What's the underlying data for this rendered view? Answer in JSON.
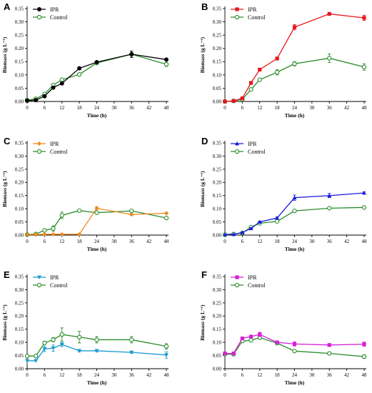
{
  "figure": {
    "x_ticks": [
      0,
      6,
      12,
      18,
      24,
      30,
      36,
      42,
      48
    ],
    "y_ticks": [
      "0.00",
      "0.05",
      "0.10",
      "0.15",
      "0.20",
      "0.25",
      "0.30",
      "0.35"
    ]
  },
  "chart_data": [
    {
      "type": "line",
      "panel": "A",
      "xlabel": "Time (h)",
      "ylabel": "Biomass (g L⁻¹)",
      "xlim": [
        0,
        48
      ],
      "ylim": [
        0,
        0.35
      ],
      "legend_position": "top-left",
      "series": [
        {
          "name": "IPR",
          "color": "#000000",
          "marker": "circle-filled",
          "x": [
            0,
            3,
            6,
            9,
            12,
            18,
            24,
            36,
            48
          ],
          "y": [
            0.003,
            0.005,
            0.02,
            0.052,
            0.068,
            0.125,
            0.148,
            0.178,
            0.158
          ],
          "err": [
            0,
            0,
            0,
            0,
            0.004,
            0.004,
            0.004,
            0.012,
            0.004
          ]
        },
        {
          "name": "Control",
          "color": "#2a8c2a",
          "marker": "circle-open",
          "x": [
            0,
            3,
            6,
            9,
            12,
            18,
            24,
            36,
            48
          ],
          "y": [
            0.005,
            0.01,
            0.028,
            0.062,
            0.082,
            0.102,
            0.145,
            0.178,
            0.14
          ],
          "err": [
            0,
            0,
            0,
            0.004,
            0.004,
            0.005,
            0.005,
            0.012,
            0.008
          ]
        }
      ]
    },
    {
      "type": "line",
      "panel": "B",
      "xlabel": "Time (h)",
      "ylabel": "Biomass (g L⁻¹)",
      "xlim": [
        0,
        48
      ],
      "ylim": [
        0,
        0.35
      ],
      "legend_position": "top-left",
      "series": [
        {
          "name": "IPR",
          "color": "#e8161c",
          "marker": "square",
          "x": [
            0,
            3,
            6,
            9,
            12,
            18,
            24,
            36,
            48
          ],
          "y": [
            0.0,
            0.002,
            0.012,
            0.07,
            0.12,
            0.162,
            0.28,
            0.33,
            0.315
          ],
          "err": [
            0,
            0,
            0,
            0.005,
            0.004,
            0.005,
            0.01,
            0.004,
            0.01
          ]
        },
        {
          "name": "Control",
          "color": "#2a8c2a",
          "marker": "circle-open",
          "x": [
            0,
            3,
            6,
            9,
            12,
            18,
            24,
            36,
            48
          ],
          "y": [
            0.0,
            0.002,
            0.008,
            0.045,
            0.082,
            0.11,
            0.142,
            0.163,
            0.13
          ],
          "err": [
            0,
            0,
            0,
            0.004,
            0.005,
            0.01,
            0.008,
            0.016,
            0.012
          ]
        }
      ]
    },
    {
      "type": "line",
      "panel": "C",
      "xlabel": "Time (h)",
      "ylabel": "Biomass (g L⁻¹)",
      "xlim": [
        0,
        48
      ],
      "ylim": [
        0,
        0.35
      ],
      "legend_position": "top-left",
      "series": [
        {
          "name": "IPR",
          "color": "#f0881a",
          "marker": "diamond",
          "x": [
            0,
            3,
            6,
            9,
            12,
            18,
            24,
            36,
            48
          ],
          "y": [
            0.002,
            0.002,
            0.003,
            0.003,
            0.003,
            0.003,
            0.102,
            0.078,
            0.083
          ],
          "err": [
            0,
            0,
            0,
            0,
            0,
            0,
            0.006,
            0.004,
            0.003
          ]
        },
        {
          "name": "Control",
          "color": "#2a8c2a",
          "marker": "circle-open",
          "x": [
            0,
            3,
            6,
            9,
            12,
            18,
            24,
            36,
            48
          ],
          "y": [
            0.002,
            0.004,
            0.018,
            0.025,
            0.075,
            0.093,
            0.085,
            0.092,
            0.065
          ],
          "err": [
            0,
            0,
            0,
            0.01,
            0.012,
            0.004,
            0.004,
            0.003,
            0.004
          ]
        }
      ]
    },
    {
      "type": "line",
      "panel": "D",
      "xlabel": "Time (h)",
      "ylabel": "Biomass (g L⁻¹)",
      "xlim": [
        0,
        48
      ],
      "ylim": [
        0,
        0.35
      ],
      "legend_position": "top-left",
      "series": [
        {
          "name": "IPR",
          "color": "#1a1adc",
          "marker": "triangle-up",
          "x": [
            0,
            3,
            6,
            9,
            12,
            18,
            24,
            36,
            48
          ],
          "y": [
            0.002,
            0.003,
            0.01,
            0.025,
            0.05,
            0.065,
            0.142,
            0.15,
            0.16
          ],
          "err": [
            0,
            0,
            0,
            0.003,
            0.003,
            0.004,
            0.01,
            0.008,
            0.004
          ]
        },
        {
          "name": "Control",
          "color": "#2a8c2a",
          "marker": "circle-open",
          "x": [
            0,
            3,
            6,
            9,
            12,
            18,
            24,
            36,
            48
          ],
          "y": [
            0.002,
            0.004,
            0.008,
            0.03,
            0.045,
            0.052,
            0.092,
            0.102,
            0.105
          ],
          "err": [
            0,
            0,
            0,
            0.003,
            0.003,
            0.003,
            0.003,
            0.003,
            0.003
          ]
        }
      ]
    },
    {
      "type": "line",
      "panel": "E",
      "xlabel": "Time (h)",
      "ylabel": "Biomass (g L⁻¹)",
      "xlim": [
        0,
        48
      ],
      "ylim": [
        0,
        0.35
      ],
      "legend_position": "top-left",
      "series": [
        {
          "name": "IPR",
          "color": "#1a9ad0",
          "marker": "triangle-down",
          "x": [
            0,
            3,
            6,
            9,
            12,
            18,
            24,
            36,
            48
          ],
          "y": [
            0.03,
            0.03,
            0.075,
            0.078,
            0.092,
            0.068,
            0.068,
            0.062,
            0.052
          ],
          "err": [
            0,
            0,
            0.01,
            0.012,
            0.008,
            0.004,
            0.004,
            0.004,
            0.012
          ]
        },
        {
          "name": "Control",
          "color": "#2a8c2a",
          "marker": "circle-open",
          "x": [
            0,
            3,
            6,
            9,
            12,
            18,
            24,
            36,
            48
          ],
          "y": [
            0.048,
            0.048,
            0.098,
            0.11,
            0.13,
            0.12,
            0.11,
            0.11,
            0.085
          ],
          "err": [
            0,
            0,
            0.006,
            0.008,
            0.025,
            0.022,
            0.012,
            0.012,
            0.01
          ]
        }
      ]
    },
    {
      "type": "line",
      "panel": "F",
      "xlabel": "Time (h)",
      "ylabel": "Biomass (g L⁻¹)",
      "xlim": [
        0,
        48
      ],
      "ylim": [
        0,
        0.35
      ],
      "legend_position": "top-left",
      "series": [
        {
          "name": "IPR",
          "color": "#d61fd6",
          "marker": "square",
          "x": [
            0,
            3,
            6,
            9,
            12,
            18,
            24,
            36,
            48
          ],
          "y": [
            0.058,
            0.058,
            0.115,
            0.122,
            0.13,
            0.1,
            0.094,
            0.09,
            0.093
          ],
          "err": [
            0,
            0,
            0.005,
            0.005,
            0.008,
            0.004,
            0.008,
            0.004,
            0.008
          ]
        },
        {
          "name": "Control",
          "color": "#2a8c2a",
          "marker": "circle-open",
          "x": [
            0,
            3,
            6,
            9,
            12,
            18,
            24,
            36,
            48
          ],
          "y": [
            0.055,
            0.055,
            0.105,
            0.108,
            0.118,
            0.097,
            0.067,
            0.058,
            0.046
          ],
          "err": [
            0,
            0,
            0.005,
            0.005,
            0.005,
            0.004,
            0.004,
            0.004,
            0.007
          ]
        }
      ]
    }
  ]
}
